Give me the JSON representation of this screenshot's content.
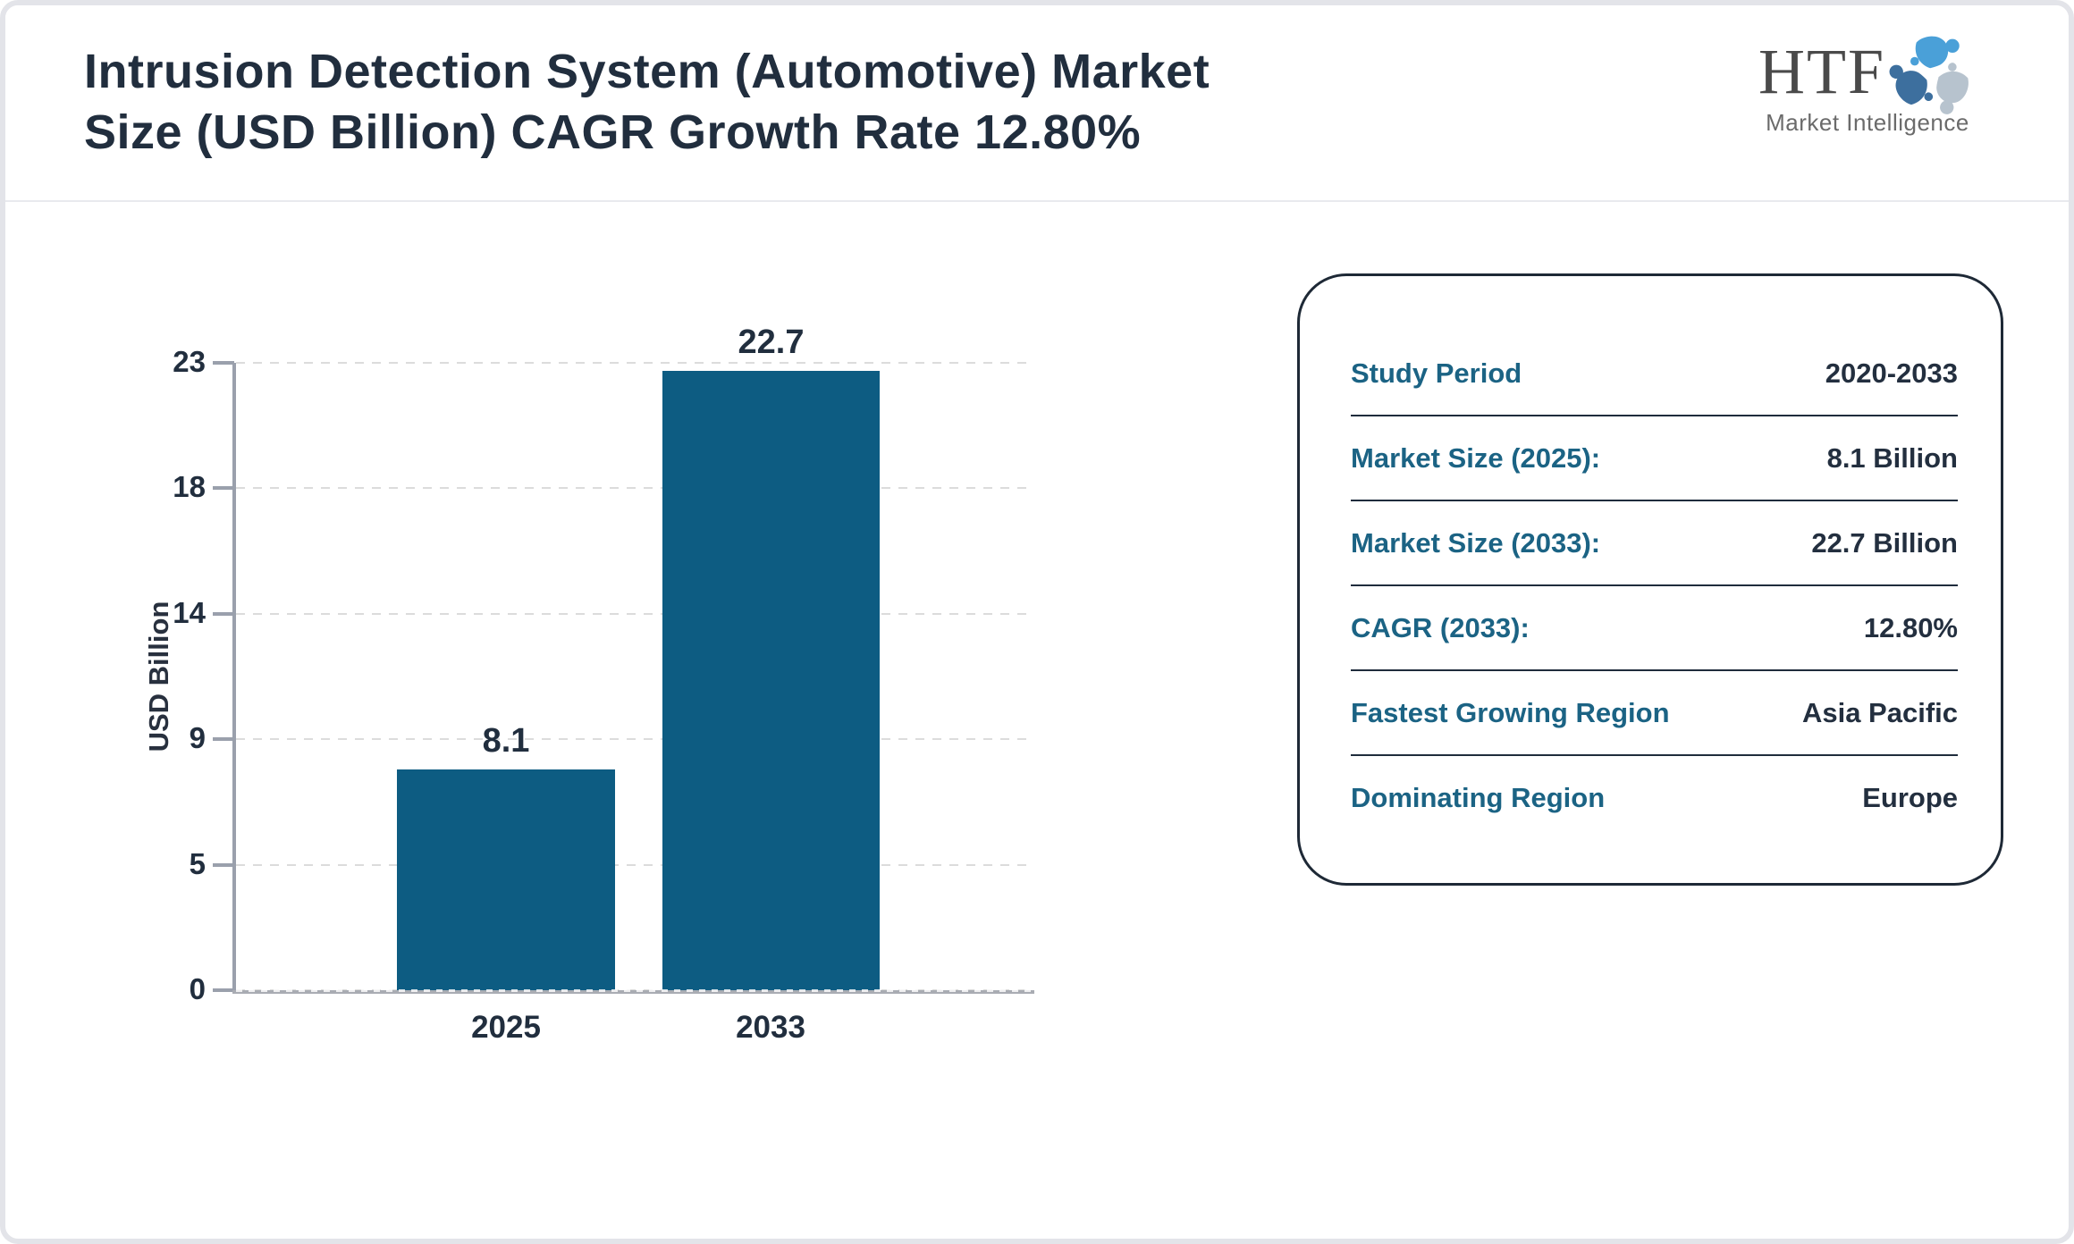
{
  "page": {
    "title": "Intrusion Detection System (Automotive) Market\nSize (USD Billion) CAGR Growth Rate 12.80%"
  },
  "logo": {
    "name": "HTF",
    "subtitle": "Market Intelligence",
    "icon": "htf-swirl-logo",
    "icon_colors": {
      "top_figure": "#4aa0d8",
      "left_figure": "#b7c3ce",
      "right_figure": "#3d6f9e"
    }
  },
  "chart_data": {
    "type": "bar",
    "title": "Intrusion Detection System (Automotive) Market Size (USD Billion)",
    "categories": [
      "2025",
      "2033"
    ],
    "values": [
      8.1,
      22.7
    ],
    "value_labels": [
      "8.1",
      "22.7"
    ],
    "xlabel": "",
    "ylabel": "USD Billion",
    "ylim": [
      0,
      23
    ],
    "yticks": [
      "23",
      "18",
      "14",
      "9",
      "5",
      "0"
    ],
    "grid": "horizontal dashed, on",
    "legend": "none",
    "bar_color": "#0d5c82"
  },
  "panel": {
    "rows": [
      {
        "label": "Study Period",
        "value": "2020-2033"
      },
      {
        "label": "Market Size (2025):",
        "value": "8.1 Billion"
      },
      {
        "label": "Market Size (2033):",
        "value": "22.7 Billion"
      },
      {
        "label": "CAGR (2033):",
        "value": "12.80%"
      },
      {
        "label": "Fastest Growing Region",
        "value": "Asia Pacific"
      },
      {
        "label": "Dominating Region",
        "value": "Europe"
      }
    ]
  },
  "colors": {
    "bar": "#0d5c82",
    "title_text": "#212e3e",
    "panel_label_teal": "#1b6384",
    "panel_value_navy": "#232f3f",
    "axis_gray": "#9aa0ac",
    "gridline_gray": "#dcdcdc",
    "page_border": "#e3e4e9"
  }
}
